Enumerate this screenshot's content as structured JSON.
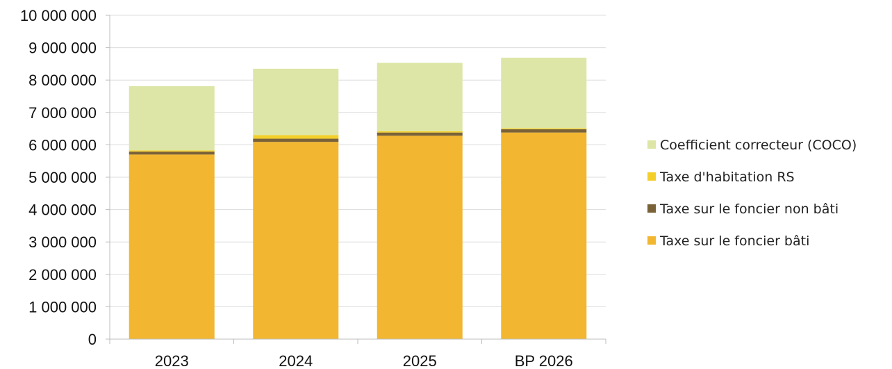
{
  "chart_data": {
    "type": "bar",
    "stacked": true,
    "categories": [
      "2023",
      "2024",
      "2025",
      "BP 2026"
    ],
    "series": [
      {
        "name": "Taxe sur le foncier bâti",
        "color": "#f2b630",
        "values": [
          5700000,
          6090000,
          6280000,
          6380000
        ]
      },
      {
        "name": "Taxe sur le foncier non bâti",
        "color": "#7a6238",
        "values": [
          90000,
          100000,
          100000,
          100000
        ]
      },
      {
        "name": "Taxe d'habitation RS",
        "color": "#f4cf2a",
        "values": [
          40000,
          110000,
          40000,
          30000
        ]
      },
      {
        "name": "Coefficient correcteur (COCO)",
        "color": "#dde6a6",
        "values": [
          1980000,
          2050000,
          2110000,
          2180000
        ]
      }
    ],
    "legend_order": [
      3,
      2,
      1,
      0
    ],
    "ylim": [
      0,
      10000000
    ],
    "yticks": [
      0,
      1000000,
      2000000,
      3000000,
      4000000,
      5000000,
      6000000,
      7000000,
      8000000,
      9000000,
      10000000
    ],
    "ytick_labels": [
      "0",
      "1 000 000",
      "2 000 000",
      "3 000 000",
      "4 000 000",
      "5 000 000",
      "6 000 000",
      "7 000 000",
      "8 000 000",
      "9 000 000",
      "10 000 000"
    ],
    "grid": true,
    "legend_position": "right",
    "title": "",
    "xlabel": "",
    "ylabel": ""
  }
}
